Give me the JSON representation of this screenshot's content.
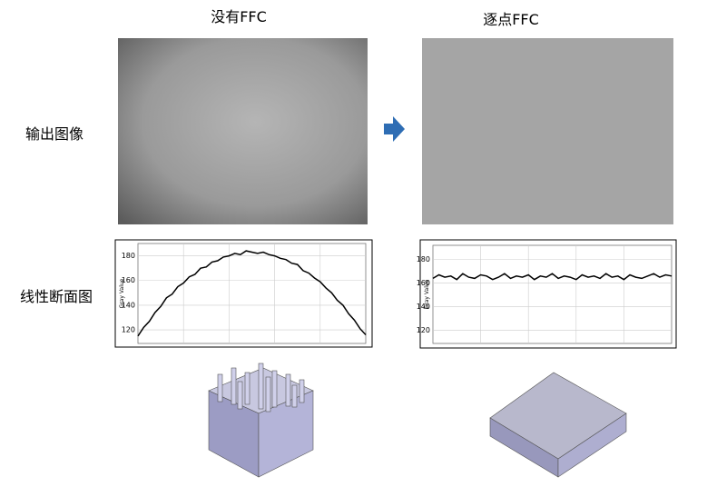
{
  "columns": [
    "没有FFC",
    "逐点FFC"
  ],
  "rows": [
    "输出图像",
    "线性断面图"
  ],
  "chart_data": [
    {
      "type": "line",
      "ylabel": "Gray Value",
      "color": "#000000",
      "grid": true,
      "ylim": [
        109,
        190
      ],
      "yticks": [
        120,
        140,
        160,
        180
      ],
      "values": [
        115,
        122,
        127,
        134,
        139,
        146,
        149,
        155,
        158,
        163,
        165,
        170,
        171,
        175,
        176,
        179,
        180,
        182,
        181,
        184,
        183,
        182,
        183,
        181,
        180,
        178,
        177,
        174,
        173,
        168,
        166,
        162,
        159,
        154,
        150,
        144,
        140,
        133,
        128,
        121,
        116
      ]
    },
    {
      "type": "line",
      "ylabel": "Gray Value",
      "color": "#000000",
      "grid": true,
      "ylim": [
        109,
        192
      ],
      "yticks": [
        120,
        140,
        160,
        180
      ],
      "values": [
        164,
        167,
        165,
        166,
        163,
        168,
        165,
        164,
        167,
        166,
        163,
        165,
        168,
        164,
        166,
        165,
        167,
        163,
        166,
        165,
        168,
        164,
        166,
        165,
        163,
        167,
        165,
        166,
        164,
        168,
        165,
        166,
        163,
        167,
        165,
        164,
        166,
        168,
        165,
        167,
        166
      ]
    }
  ]
}
